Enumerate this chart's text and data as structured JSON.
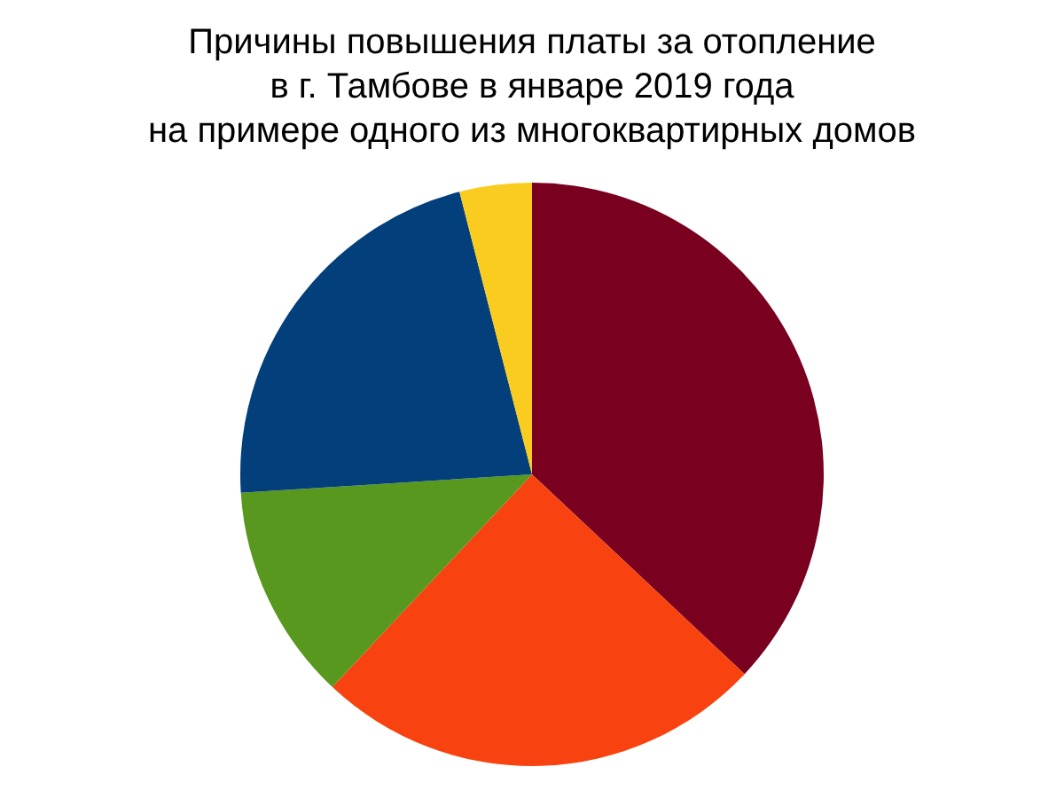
{
  "chart_data": {
    "type": "pie",
    "title": "Причины повышения платы за отопление\nв г. Тамбове в январе 2019 года\nна примере одного из многоквартирных домов",
    "categories": [
      null,
      null,
      null,
      null,
      null
    ],
    "values": [
      37,
      25,
      12,
      22,
      4
    ],
    "colors": [
      "#7a0020",
      "#f84310",
      "#58981e",
      "#023f7b",
      "#f9cc1f"
    ],
    "legend": false
  }
}
